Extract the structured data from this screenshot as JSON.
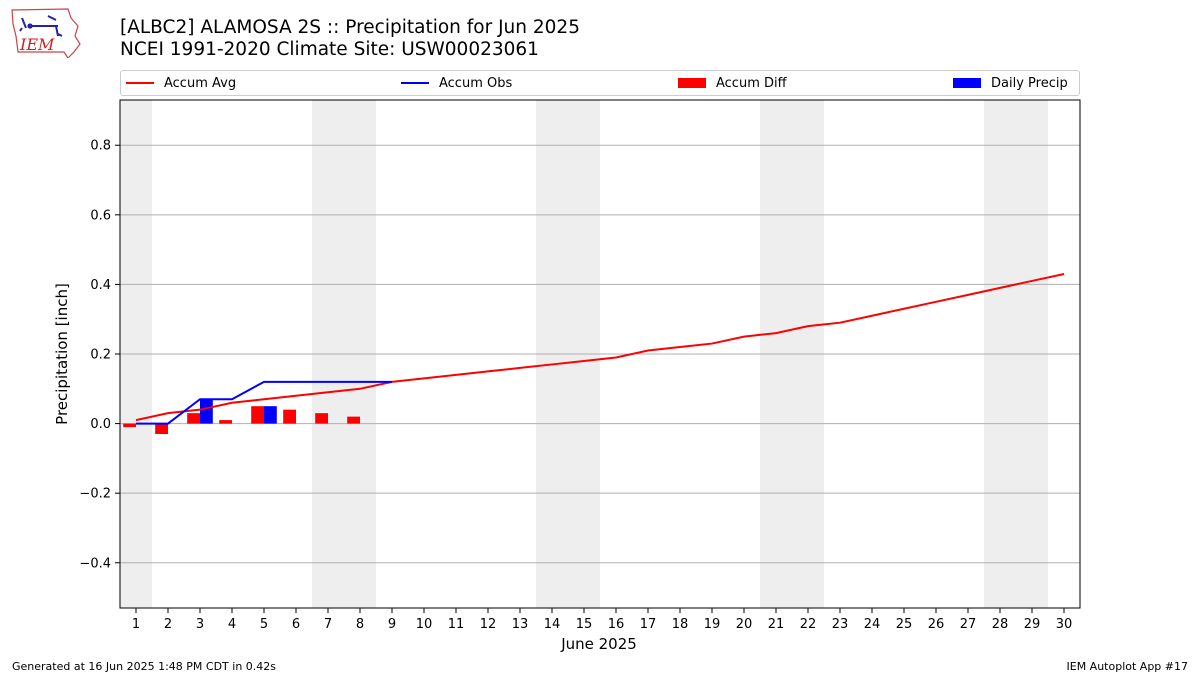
{
  "header": {
    "title_line1": "[ALBC2] ALAMOSA 2S :: Precipitation for Jun 2025",
    "title_line2": "NCEI 1991-2020 Climate Site: USW00023061"
  },
  "logo": {
    "text": "IEM",
    "icon": "iowa-state-map-logo"
  },
  "legend": [
    {
      "label": "Accum Avg",
      "kind": "line",
      "color": "#ff0000"
    },
    {
      "label": "Accum Obs",
      "kind": "line",
      "color": "#0000ff"
    },
    {
      "label": "Accum Diff",
      "kind": "bar",
      "color": "#ff0000"
    },
    {
      "label": "Daily Precip",
      "kind": "bar",
      "color": "#0000ff"
    }
  ],
  "footer": {
    "left": "Generated at 16 Jun 2025 1:48 PM CDT in 0.42s",
    "right": "IEM Autoplot App #17"
  },
  "chart_data": {
    "type": "line",
    "xlabel": "June 2025",
    "ylabel": "Precipitation [inch]",
    "ylim": [
      -0.53,
      0.93
    ],
    "yticks": [
      -0.4,
      -0.2,
      0.0,
      0.2,
      0.4,
      0.6,
      0.8
    ],
    "ytick_labels": [
      "−0.4",
      "−0.2",
      "0.0",
      "0.2",
      "0.4",
      "0.6",
      "0.8"
    ],
    "xlim": [
      0.5,
      30.5
    ],
    "x": [
      1,
      2,
      3,
      4,
      5,
      6,
      7,
      8,
      9,
      10,
      11,
      12,
      13,
      14,
      15,
      16,
      17,
      18,
      19,
      20,
      21,
      22,
      23,
      24,
      25,
      26,
      27,
      28,
      29,
      30
    ],
    "grid": "horizontal",
    "weekend_shading": [
      [
        0.5,
        1.5
      ],
      [
        6.5,
        8.5
      ],
      [
        13.5,
        15.5
      ],
      [
        20.5,
        22.5
      ],
      [
        27.5,
        29.5
      ]
    ],
    "weekend_color": "#eeeeee",
    "series": [
      {
        "name": "Accum Avg",
        "type": "line",
        "color": "#ff0000",
        "values": [
          0.01,
          0.03,
          0.04,
          0.06,
          0.07,
          0.08,
          0.09,
          0.1,
          0.12,
          0.13,
          0.14,
          0.15,
          0.16,
          0.17,
          0.18,
          0.19,
          0.21,
          0.22,
          0.23,
          0.25,
          0.26,
          0.28,
          0.29,
          0.31,
          0.33,
          0.35,
          0.37,
          0.39,
          0.41,
          0.43
        ]
      },
      {
        "name": "Accum Obs",
        "type": "line",
        "color": "#0000ff",
        "x": [
          1,
          2,
          3,
          4,
          5,
          6,
          7,
          8,
          9
        ],
        "values": [
          0.0,
          0.0,
          0.07,
          0.07,
          0.12,
          0.12,
          0.12,
          0.12,
          0.12
        ]
      },
      {
        "name": "Accum Diff",
        "type": "bar",
        "color": "#ff0000",
        "x": [
          1,
          2,
          3,
          4,
          5,
          6,
          7,
          8
        ],
        "values": [
          -0.01,
          -0.03,
          0.03,
          0.01,
          0.05,
          0.04,
          0.03,
          0.02
        ]
      },
      {
        "name": "Daily Precip",
        "type": "bar",
        "color": "#0000ff",
        "x": [
          3,
          5
        ],
        "values": [
          0.07,
          0.05
        ]
      }
    ]
  }
}
